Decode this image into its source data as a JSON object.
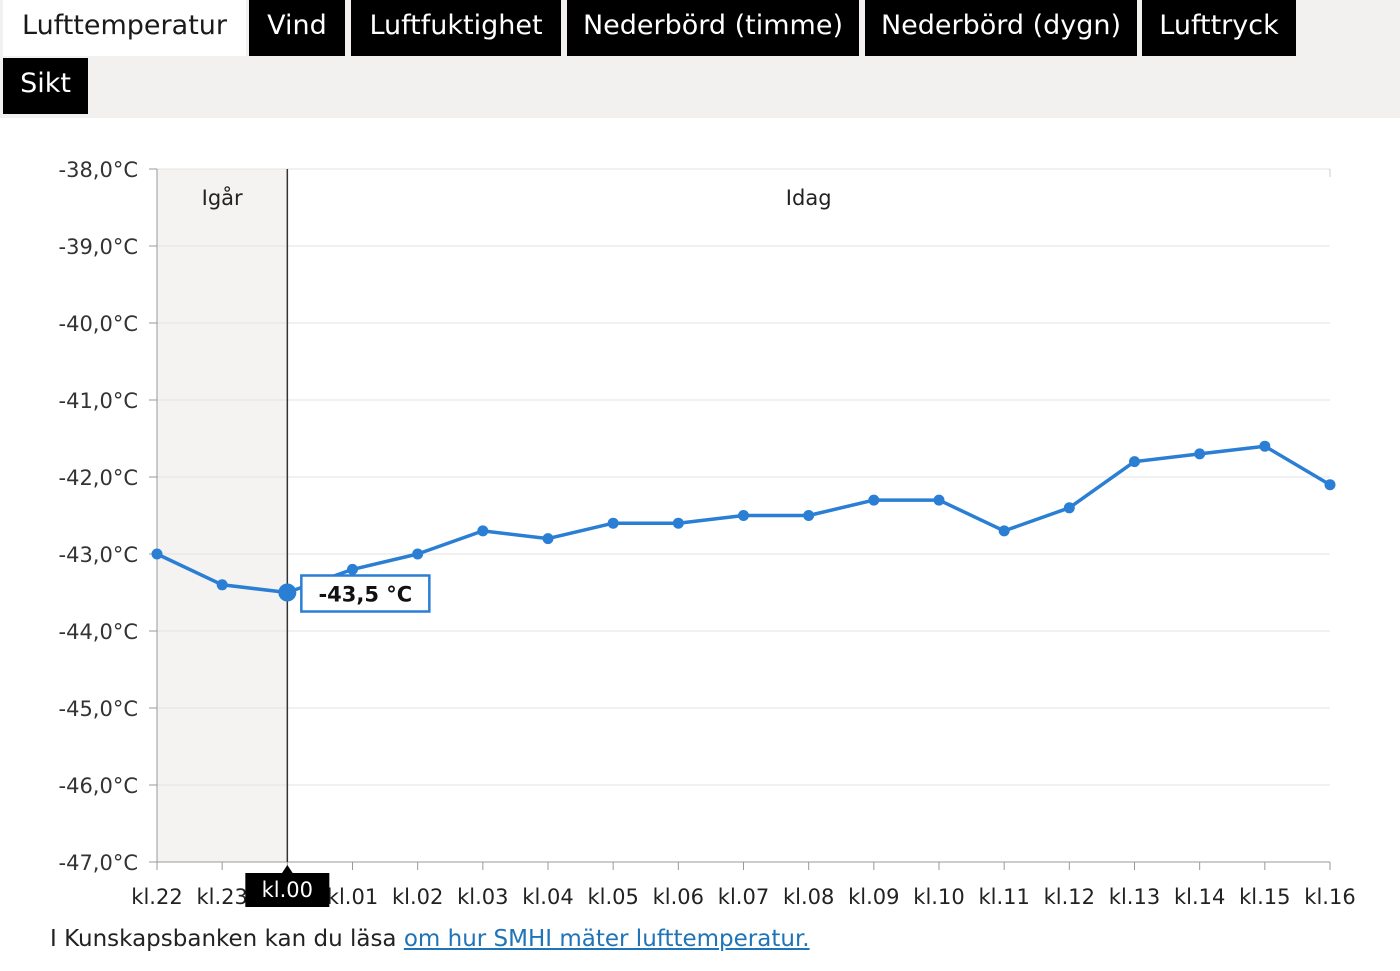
{
  "tabs": [
    {
      "label": "Lufttemperatur",
      "active": true
    },
    {
      "label": "Vind",
      "active": false
    },
    {
      "label": "Luftfuktighet",
      "active": false
    },
    {
      "label": "Nederbörd (timme)",
      "active": false
    },
    {
      "label": "Nederbörd (dygn)",
      "active": false
    },
    {
      "label": "Lufttryck",
      "active": false
    },
    {
      "label": "Sikt",
      "active": false
    }
  ],
  "chart_data": {
    "type": "line",
    "categories": [
      "kl.22",
      "kl.23",
      "kl.00",
      "kl.01",
      "kl.02",
      "kl.03",
      "kl.04",
      "kl.05",
      "kl.06",
      "kl.07",
      "kl.08",
      "kl.09",
      "kl.10",
      "kl.11",
      "kl.12",
      "kl.13",
      "kl.14",
      "kl.15",
      "kl.16"
    ],
    "values": [
      -43.0,
      -43.4,
      -43.5,
      -43.2,
      -43.0,
      -42.7,
      -42.8,
      -42.6,
      -42.6,
      -42.5,
      -42.5,
      -42.3,
      -42.3,
      -42.7,
      -42.4,
      -41.8,
      -41.7,
      -41.6,
      -42.1
    ],
    "ylim": [
      -47,
      -38
    ],
    "yticks": [
      "-38,0°C",
      "-39,0°C",
      "-40,0°C",
      "-41,0°C",
      "-42,0°C",
      "-43,0°C",
      "-44,0°C",
      "-45,0°C",
      "-46,0°C",
      "-47,0°C"
    ],
    "regions": [
      {
        "label": "Igår",
        "from_index": 0,
        "to_index": 2,
        "shaded": true
      },
      {
        "label": "Idag",
        "from_index": 2,
        "to_index": 18,
        "shaded": false
      }
    ],
    "highlight": {
      "index": 2,
      "tooltip": "-43,5 °C",
      "x_label": "kl.00"
    },
    "grid": true,
    "line_color": "#2a7fd4"
  },
  "footer": {
    "text": "I Kunskapsbanken kan du läsa ",
    "link": "om hur SMHI mäter lufttemperatur."
  }
}
